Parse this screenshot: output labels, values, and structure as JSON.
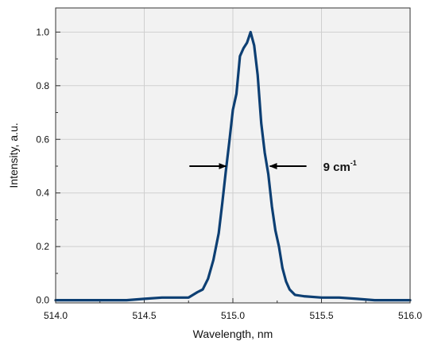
{
  "chart_data": {
    "type": "line",
    "title": "",
    "xlabel": "Wavelength, nm",
    "ylabel": "Intensity, a.u.",
    "xlim": [
      514.0,
      516.0
    ],
    "ylim": [
      -0.01,
      1.09
    ],
    "x_ticks": [
      "514.0",
      "514.5",
      "515.0",
      "515.5",
      "516.0"
    ],
    "x_tick_values": [
      514.0,
      514.5,
      515.0,
      515.5,
      516.0
    ],
    "y_ticks": [
      "0.0",
      "0.2",
      "0.4",
      "0.6",
      "0.8",
      "1.0"
    ],
    "y_tick_values": [
      0.0,
      0.2,
      0.4,
      0.6,
      0.8,
      1.0
    ],
    "grid": true,
    "line_color": "#0d3f73",
    "grid_color": "#cfcfcf",
    "plot_background": "#f2f2f2",
    "series": [
      {
        "x": [
          514.0,
          514.1,
          514.2,
          514.3,
          514.4,
          514.5,
          514.6,
          514.7,
          514.75,
          514.8,
          514.83,
          514.86,
          514.89,
          514.92,
          514.94,
          514.96,
          514.98,
          515.0,
          515.02,
          515.04,
          515.06,
          515.08,
          515.1,
          515.12,
          515.14,
          515.16,
          515.18,
          515.2,
          515.22,
          515.24,
          515.26,
          515.28,
          515.3,
          515.32,
          515.35,
          515.4,
          515.5,
          515.6,
          515.7,
          515.8,
          515.9,
          516.0
        ],
        "y": [
          0.0,
          0.0,
          0.0,
          0.0,
          0.0,
          0.005,
          0.01,
          0.01,
          0.01,
          0.03,
          0.04,
          0.08,
          0.15,
          0.25,
          0.36,
          0.48,
          0.59,
          0.71,
          0.77,
          0.91,
          0.94,
          0.96,
          1.0,
          0.95,
          0.84,
          0.66,
          0.55,
          0.47,
          0.35,
          0.26,
          0.2,
          0.12,
          0.07,
          0.04,
          0.02,
          0.015,
          0.01,
          0.01,
          0.005,
          0.0,
          0.0,
          0.0
        ]
      }
    ],
    "annotations": [
      {
        "text": "9 cm",
        "superscript": "-1",
        "arrow_y": 0.5,
        "left_x": 514.97,
        "right_x": 515.2
      }
    ]
  }
}
